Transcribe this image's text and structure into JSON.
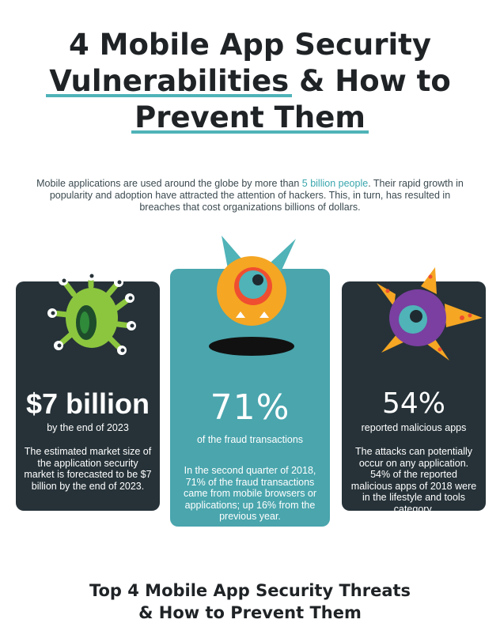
{
  "header": {
    "title_line1": "4 Mobile App Security",
    "title_line2a": "Vulnerabilities",
    "title_line2b": " & How to",
    "title_line3": "Prevent Them",
    "intro_part1": "Mobile applications are used around the globe by more than ",
    "intro_highlight": "5 billion people",
    "intro_part2": ". Their rapid growth in popularity and adoption have attracted the attention of hackers. This, in turn, has resulted in breaches that cost organizations billions of dollars."
  },
  "cards": [
    {
      "stat": "$7 billion",
      "caption": "by the end of 2023",
      "description": "The estimated market size of the application security market is forecasted to be $7 billion by the end of 2023.",
      "icon": "green-tentacle-monster-icon"
    },
    {
      "stat": "71%",
      "caption": "of the fraud transactions",
      "description": "In the second quarter of 2018, 71% of the fraud transactions came from mobile browsers or applications; up 16% from the previous year.",
      "icon": "orange-one-eyed-monster-icon"
    },
    {
      "stat": "54%",
      "caption": "reported malicious apps",
      "description": "The attacks can potentially occur on any application. 54% of the reported malicious apps of 2018 were in the lifestyle and tools category.",
      "icon": "purple-spiky-monster-icon"
    }
  ],
  "section": {
    "title_line1": "Top 4 Mobile App Security Threats",
    "title_line2": "& How to Prevent Them"
  },
  "colors": {
    "accent": "#4aa5ad",
    "dark_card": "#263238",
    "title": "#1f2326"
  }
}
